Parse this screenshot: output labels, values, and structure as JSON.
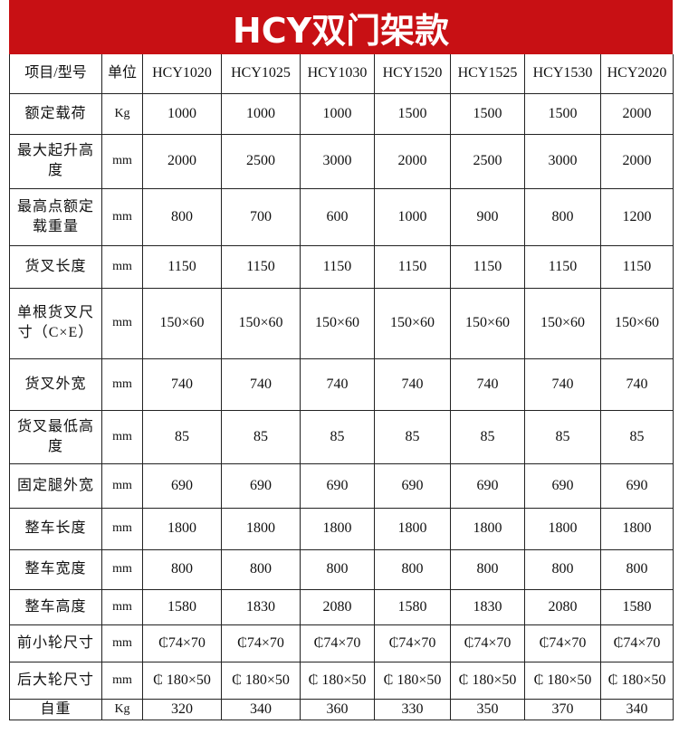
{
  "title": "HCY双门架款",
  "header": {
    "item": "项目/型号",
    "unit": "单位",
    "models": [
      "HCY1020",
      "HCY1025",
      "HCY1030",
      "HCY1520",
      "HCY1525",
      "HCY1530",
      "HCY2020"
    ]
  },
  "rows": [
    {
      "label": "额定载荷",
      "unit": "Kg",
      "values": [
        "1000",
        "1000",
        "1000",
        "1500",
        "1500",
        "1500",
        "2000"
      ]
    },
    {
      "label": "最大起升高度",
      "unit": "mm",
      "values": [
        "2000",
        "2500",
        "3000",
        "2000",
        "2500",
        "3000",
        "2000"
      ]
    },
    {
      "label": "最高点额定载重量",
      "unit": "mm",
      "values": [
        "800",
        "700",
        "600",
        "1000",
        "900",
        "800",
        "1200"
      ]
    },
    {
      "label": "货叉长度",
      "unit": "mm",
      "values": [
        "1150",
        "1150",
        "1150",
        "1150",
        "1150",
        "1150",
        "1150"
      ]
    },
    {
      "label": "单根货叉尺寸（C×E）",
      "unit": "mm",
      "values": [
        "150×60",
        "150×60",
        "150×60",
        "150×60",
        "150×60",
        "150×60",
        "150×60"
      ]
    },
    {
      "label": "货叉外宽",
      "unit": "mm",
      "values": [
        "740",
        "740",
        "740",
        "740",
        "740",
        "740",
        "740"
      ]
    },
    {
      "label": "货叉最低高度",
      "unit": "mm",
      "values": [
        "85",
        "85",
        "85",
        "85",
        "85",
        "85",
        "85"
      ]
    },
    {
      "label": "固定腿外宽",
      "unit": "mm",
      "values": [
        "690",
        "690",
        "690",
        "690",
        "690",
        "690",
        "690"
      ]
    },
    {
      "label": "整车长度",
      "unit": "mm",
      "values": [
        "1800",
        "1800",
        "1800",
        "1800",
        "1800",
        "1800",
        "1800"
      ]
    },
    {
      "label": "整车宽度",
      "unit": "mm",
      "values": [
        "800",
        "800",
        "800",
        "800",
        "800",
        "800",
        "800"
      ]
    },
    {
      "label": "整车高度",
      "unit": "mm",
      "values": [
        "1580",
        "1830",
        "2080",
        "1580",
        "1830",
        "2080",
        "1580"
      ]
    },
    {
      "label": "前小轮尺寸",
      "unit": "mm",
      "values": [
        "₵74×70",
        "₵74×70",
        "₵74×70",
        "₵74×70",
        "₵74×70",
        "₵74×70",
        "₵74×70"
      ]
    },
    {
      "label": "后大轮尺寸",
      "unit": "mm",
      "values": [
        "₵ 180×50",
        "₵ 180×50",
        "₵ 180×50",
        "₵ 180×50",
        "₵ 180×50",
        "₵ 180×50",
        "₵ 180×50"
      ]
    },
    {
      "label": "自重",
      "unit": "Kg",
      "values": [
        "320",
        "340",
        "360",
        "330",
        "350",
        "370",
        "340"
      ]
    }
  ],
  "colors": {
    "title_bg": "#c81014",
    "title_text": "#ffffff"
  }
}
